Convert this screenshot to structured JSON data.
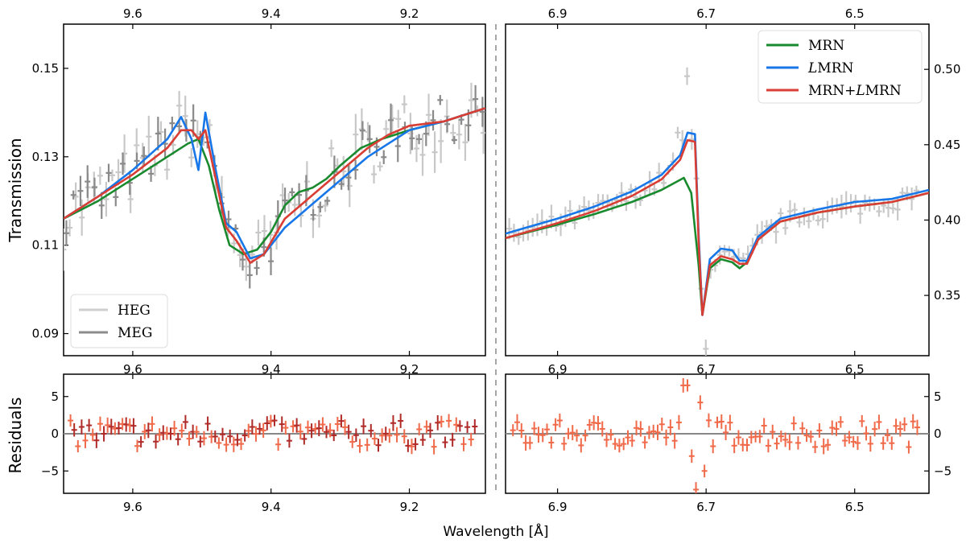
{
  "chart_data": [
    {
      "type": "line",
      "panel": "top-left",
      "ylabel": "Transmission",
      "xlim": [
        9.7,
        9.09
      ],
      "ylim": [
        0.085,
        0.16
      ],
      "xticks": [
        {
          "v": 9.6,
          "label": "9.6"
        },
        {
          "v": 9.4,
          "label": "9.4"
        },
        {
          "v": 9.2,
          "label": "9.2"
        }
      ],
      "yticks": [
        {
          "v": 0.09,
          "label": "0.09"
        },
        {
          "v": 0.11,
          "label": "0.11"
        },
        {
          "v": 0.13,
          "label": "0.13"
        },
        {
          "v": 0.15,
          "label": "0.15"
        }
      ],
      "series": [
        {
          "name": "MRN",
          "color": "#1a8a2e",
          "x": [
            9.7,
            9.65,
            9.6,
            9.55,
            9.52,
            9.505,
            9.49,
            9.475,
            9.46,
            9.44,
            9.42,
            9.4,
            9.38,
            9.36,
            9.34,
            9.32,
            9.3,
            9.27,
            9.24,
            9.2,
            9.15,
            9.09
          ],
          "y": [
            0.116,
            0.12,
            0.125,
            0.13,
            0.133,
            0.134,
            0.128,
            0.118,
            0.11,
            0.108,
            0.109,
            0.113,
            0.119,
            0.122,
            0.123,
            0.125,
            0.128,
            0.132,
            0.134,
            0.136,
            0.138,
            0.141
          ]
        },
        {
          "name": "LMRN",
          "color": "#1877e8",
          "x": [
            9.7,
            9.65,
            9.6,
            9.55,
            9.53,
            9.515,
            9.505,
            9.495,
            9.48,
            9.465,
            9.45,
            9.43,
            9.41,
            9.38,
            9.35,
            9.32,
            9.29,
            9.26,
            9.23,
            9.2,
            9.15,
            9.09
          ],
          "y": [
            0.116,
            0.121,
            0.127,
            0.134,
            0.139,
            0.134,
            0.127,
            0.14,
            0.127,
            0.115,
            0.113,
            0.107,
            0.108,
            0.114,
            0.118,
            0.122,
            0.126,
            0.13,
            0.133,
            0.136,
            0.138,
            0.141
          ]
        },
        {
          "name": "MRN+LMRN",
          "color": "#d93d33",
          "x": [
            9.7,
            9.65,
            9.6,
            9.55,
            9.53,
            9.515,
            9.505,
            9.495,
            9.48,
            9.465,
            9.45,
            9.43,
            9.41,
            9.38,
            9.35,
            9.32,
            9.29,
            9.26,
            9.23,
            9.2,
            9.15,
            9.09
          ],
          "y": [
            0.116,
            0.121,
            0.126,
            0.132,
            0.136,
            0.136,
            0.134,
            0.136,
            0.125,
            0.114,
            0.111,
            0.106,
            0.108,
            0.116,
            0.12,
            0.124,
            0.128,
            0.132,
            0.135,
            0.137,
            0.138,
            0.141
          ]
        }
      ],
      "legend": {
        "position": "bottom-left",
        "entries": [
          {
            "label": "HEG",
            "color": "#cfcfcf"
          },
          {
            "label": "MEG",
            "color": "#8c8c8c"
          }
        ]
      }
    },
    {
      "type": "line",
      "panel": "top-right",
      "xlim": [
        6.97,
        6.4
      ],
      "ylim": [
        0.31,
        0.53
      ],
      "xticks": [
        {
          "v": 6.9,
          "label": "6.9"
        },
        {
          "v": 6.7,
          "label": "6.7"
        },
        {
          "v": 6.5,
          "label": "6.5"
        }
      ],
      "yticks": [
        {
          "v": 0.35,
          "label": "0.35"
        },
        {
          "v": 0.4,
          "label": "0.40"
        },
        {
          "v": 0.45,
          "label": "0.45"
        },
        {
          "v": 0.5,
          "label": "0.50"
        }
      ],
      "series": [
        {
          "name": "MRN",
          "color": "#1a8a2e",
          "x": [
            6.97,
            6.9,
            6.85,
            6.8,
            6.76,
            6.73,
            6.72,
            6.71,
            6.705,
            6.695,
            6.68,
            6.665,
            6.655,
            6.645,
            6.63,
            6.6,
            6.55,
            6.5,
            6.45,
            6.4
          ],
          "y": [
            0.388,
            0.397,
            0.404,
            0.412,
            0.42,
            0.428,
            0.418,
            0.37,
            0.337,
            0.368,
            0.374,
            0.372,
            0.368,
            0.372,
            0.387,
            0.399,
            0.405,
            0.409,
            0.412,
            0.418
          ]
        },
        {
          "name": "LMRN",
          "color": "#1877e8",
          "x": [
            6.97,
            6.9,
            6.85,
            6.8,
            6.76,
            6.735,
            6.725,
            6.715,
            6.71,
            6.705,
            6.695,
            6.68,
            6.665,
            6.655,
            6.645,
            6.63,
            6.6,
            6.55,
            6.5,
            6.45,
            6.4
          ],
          "y": [
            0.391,
            0.401,
            0.409,
            0.419,
            0.43,
            0.443,
            0.458,
            0.457,
            0.39,
            0.337,
            0.374,
            0.381,
            0.38,
            0.373,
            0.373,
            0.389,
            0.401,
            0.407,
            0.412,
            0.414,
            0.42
          ]
        },
        {
          "name": "MRN+LMRN",
          "color": "#d93d33",
          "x": [
            6.97,
            6.9,
            6.85,
            6.8,
            6.76,
            6.735,
            6.725,
            6.715,
            6.71,
            6.705,
            6.695,
            6.68,
            6.665,
            6.655,
            6.645,
            6.63,
            6.6,
            6.55,
            6.5,
            6.45,
            6.4
          ],
          "y": [
            0.388,
            0.398,
            0.406,
            0.416,
            0.427,
            0.44,
            0.453,
            0.452,
            0.385,
            0.337,
            0.37,
            0.376,
            0.374,
            0.371,
            0.371,
            0.387,
            0.399,
            0.405,
            0.409,
            0.412,
            0.418
          ]
        }
      ],
      "legend": {
        "position": "top-right",
        "entries": [
          {
            "label": "MRN",
            "color": "#1a8a2e"
          },
          {
            "label": "LMRN",
            "color": "#1877e8",
            "italic_prefix": "L",
            "rest": "MRN"
          },
          {
            "label": "MRN+LMRN",
            "color": "#d93d33",
            "prefix": "MRN+",
            "italic_prefix": "L",
            "rest": "MRN"
          }
        ]
      }
    },
    {
      "type": "scatter",
      "panel": "bottom-left",
      "ylabel": "Residuals",
      "xlabel": "",
      "xlim": [
        9.7,
        9.09
      ],
      "ylim": [
        -8,
        8
      ],
      "xticks": [
        {
          "v": 9.6,
          "label": "9.6"
        },
        {
          "v": 9.4,
          "label": "9.4"
        },
        {
          "v": 9.2,
          "label": "9.2"
        }
      ],
      "yticks": [
        {
          "v": -5,
          "label": "−5"
        },
        {
          "v": 0,
          "label": "0"
        },
        {
          "v": 5,
          "label": "5"
        }
      ],
      "zero_line": true
    },
    {
      "type": "scatter",
      "panel": "bottom-right",
      "xlabel": "Wavelength   [Å]",
      "xlim": [
        6.97,
        6.4
      ],
      "ylim": [
        -8,
        8
      ],
      "xticks": [
        {
          "v": 6.9,
          "label": "6.9"
        },
        {
          "v": 6.7,
          "label": "6.7"
        },
        {
          "v": 6.5,
          "label": "6.5"
        }
      ],
      "yticks": [
        {
          "v": -5,
          "label": "−5"
        },
        {
          "v": 0,
          "label": "0"
        },
        {
          "v": 5,
          "label": "5"
        }
      ],
      "zero_line": true
    }
  ],
  "colors": {
    "heg": "#c8c8c8",
    "meg": "#8a8a8a",
    "resid_heg": "#f06a4a",
    "resid_meg": "#b02a28",
    "zero": "#888888"
  },
  "labels": {
    "ylabel_top": "Transmission",
    "ylabel_bottom": "Residuals",
    "xlabel": "Wavelength   [Å]"
  }
}
